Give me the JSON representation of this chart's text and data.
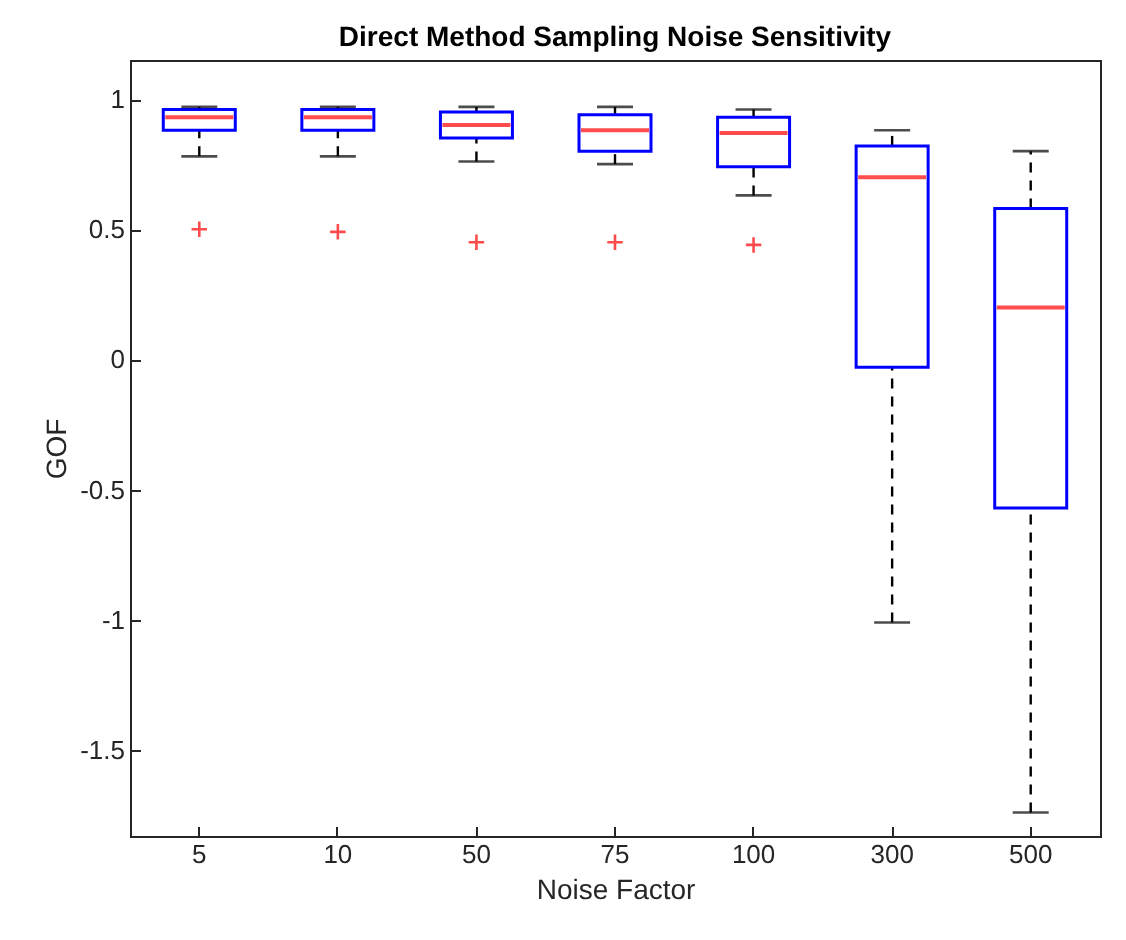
{
  "chart_data": {
    "type": "box",
    "title": "Direct Method Sampling Noise Sensitivity",
    "xlabel": "Noise Factor",
    "ylabel": "GOF",
    "categories": [
      "5",
      "10",
      "50",
      "75",
      "100",
      "300",
      "500"
    ],
    "color": "#0000ff",
    "boxes": [
      {
        "low": 0.78,
        "q1": 0.88,
        "median": 0.93,
        "q3": 0.96,
        "high": 0.97,
        "outliers": [
          0.5
        ]
      },
      {
        "low": 0.78,
        "q1": 0.88,
        "median": 0.93,
        "q3": 0.96,
        "high": 0.97,
        "outliers": [
          0.49
        ]
      },
      {
        "low": 0.76,
        "q1": 0.85,
        "median": 0.9,
        "q3": 0.95,
        "high": 0.97,
        "outliers": [
          0.45
        ]
      },
      {
        "low": 0.75,
        "q1": 0.8,
        "median": 0.88,
        "q3": 0.94,
        "high": 0.97,
        "outliers": [
          0.45
        ]
      },
      {
        "low": 0.63,
        "q1": 0.74,
        "median": 0.87,
        "q3": 0.93,
        "high": 0.96,
        "outliers": [
          0.44
        ]
      },
      {
        "low": -1.01,
        "q1": -0.03,
        "median": 0.7,
        "q3": 0.82,
        "high": 0.88
      },
      {
        "low": -1.74,
        "q1": -0.57,
        "median": 0.2,
        "q3": 0.58,
        "high": 0.8
      }
    ],
    "ylim": [
      -1.83,
      1.15
    ],
    "yticks": [
      -1.5,
      -1,
      -0.5,
      0,
      0.5,
      1
    ],
    "grid": false
  }
}
